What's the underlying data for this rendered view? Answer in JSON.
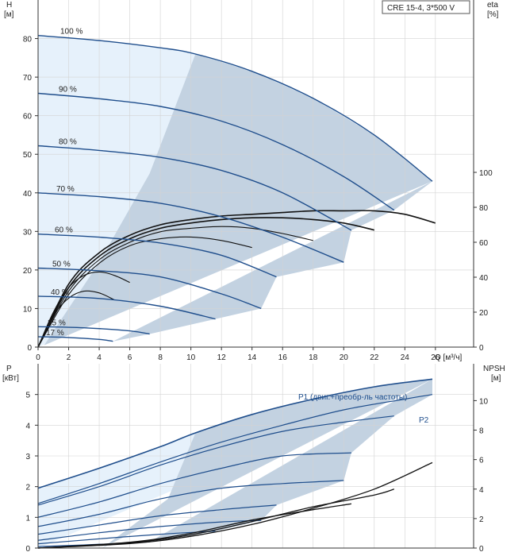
{
  "chart_data": [
    {
      "type": "line",
      "title": "",
      "product_label": "CRE 15-4, 3*500 V",
      "xlabel": "Q [м³/ч]",
      "ylabel_left": "H\n[м]",
      "ylabel_left_top": "H",
      "ylabel_left_unit": "[м]",
      "ylabel_right_top": "eta",
      "ylabel_right_unit": "[%]",
      "xlim": [
        0,
        28.5
      ],
      "ylim_left": [
        0,
        90
      ],
      "ylim_right": [
        0,
        100
      ],
      "x_ticks": [
        "0",
        "2",
        "4",
        "6",
        "8",
        "10",
        "12",
        "14",
        "16",
        "18",
        "20",
        "22",
        "24",
        "26"
      ],
      "y_left_ticks": [
        "0",
        "10",
        "20",
        "30",
        "40",
        "50",
        "60",
        "70",
        "80"
      ],
      "y_right_ticks": [
        "0",
        "20",
        "40",
        "60",
        "80",
        "100"
      ],
      "grid": true,
      "head_curves": [
        {
          "name": "100 %",
          "speed": 1.0,
          "points": [
            [
              0,
              80.8
            ],
            [
              4,
              79.5
            ],
            [
              8,
              77.6
            ],
            [
              10.3,
              76.0
            ],
            [
              14,
              71.5
            ],
            [
              18,
              64.5
            ],
            [
              22,
              55.0
            ],
            [
              25.8,
              43.0
            ]
          ]
        },
        {
          "name": "90 %",
          "speed": 0.9,
          "points": [
            [
              0,
              65.8
            ],
            [
              4,
              64.4
            ],
            [
              8,
              62.4
            ],
            [
              12,
              58.6
            ],
            [
              16,
              52.5
            ],
            [
              20,
              44.2
            ],
            [
              23.3,
              35.5
            ]
          ]
        },
        {
          "name": "80 %",
          "speed": 0.8,
          "points": [
            [
              0,
              52.2
            ],
            [
              4,
              51.0
            ],
            [
              8,
              49.2
            ],
            [
              12,
              45.8
            ],
            [
              16,
              40.0
            ],
            [
              20.5,
              30.3
            ]
          ]
        },
        {
          "name": "70 %",
          "speed": 0.7,
          "points": [
            [
              0,
              40.0
            ],
            [
              4,
              39.0
            ],
            [
              8,
              37.3
            ],
            [
              12,
              33.8
            ],
            [
              16,
              28.5
            ],
            [
              20,
              22.0
            ]
          ]
        },
        {
          "name": "60 %",
          "speed": 0.6,
          "points": [
            [
              0,
              29.3
            ],
            [
              4,
              28.5
            ],
            [
              8,
              27.0
            ],
            [
              12,
              23.8
            ],
            [
              15.6,
              18.2
            ]
          ]
        },
        {
          "name": "50 %",
          "speed": 0.5,
          "points": [
            [
              0,
              20.5
            ],
            [
              4,
              19.8
            ],
            [
              8,
              18.2
            ],
            [
              12,
              13.8
            ],
            [
              14.6,
              10.0
            ]
          ]
        },
        {
          "name": "40 %",
          "speed": 0.4,
          "points": [
            [
              0,
              13.2
            ],
            [
              4,
              12.6
            ],
            [
              8,
              10.6
            ],
            [
              11.6,
              7.3
            ]
          ]
        },
        {
          "name": "25 %",
          "speed": 0.25,
          "points": [
            [
              0,
              5.3
            ],
            [
              3,
              5.0
            ],
            [
              6,
              4.2
            ],
            [
              7.3,
              3.4
            ]
          ]
        },
        {
          "name": "17 %",
          "speed": 0.17,
          "points": [
            [
              0,
              2.7
            ],
            [
              2,
              2.5
            ],
            [
              4,
              2.0
            ],
            [
              4.9,
              1.5
            ]
          ]
        }
      ],
      "efficiency_curves_eta_percent": [
        {
          "points": [
            [
              0,
              0
            ],
            [
              2,
              36
            ],
            [
              4,
              54
            ],
            [
              6,
              64
            ],
            [
              8,
              70
            ],
            [
              10,
              73
            ],
            [
              12,
              75
            ],
            [
              14,
              76
            ],
            [
              16,
              77
            ],
            [
              18,
              78
            ],
            [
              20,
              78
            ],
            [
              22,
              78
            ],
            [
              24,
              76
            ],
            [
              26,
              71
            ]
          ]
        },
        {
          "points": [
            [
              0,
              0
            ],
            [
              2,
              34
            ],
            [
              4,
              52
            ],
            [
              6,
              62
            ],
            [
              8,
              68
            ],
            [
              10,
              71
            ],
            [
              12,
              73
            ],
            [
              14,
              74
            ],
            [
              16,
              74
            ],
            [
              18,
              73
            ],
            [
              20,
              71
            ],
            [
              22,
              67
            ]
          ]
        },
        {
          "points": [
            [
              0,
              0
            ],
            [
              2,
              32
            ],
            [
              4,
              50
            ],
            [
              6,
              60
            ],
            [
              8,
              66
            ],
            [
              10,
              68
            ],
            [
              12,
              69
            ],
            [
              14,
              68
            ],
            [
              16,
              65
            ],
            [
              18,
              61
            ]
          ]
        },
        {
          "points": [
            [
              0,
              0
            ],
            [
              2,
              30
            ],
            [
              4,
              48
            ],
            [
              6,
              58
            ],
            [
              8,
              62
            ],
            [
              10,
              63
            ],
            [
              12,
              61
            ],
            [
              14,
              57
            ]
          ]
        },
        {
          "points": [
            [
              0,
              0
            ],
            [
              1,
              20
            ],
            [
              2,
              34
            ],
            [
              3,
              41
            ],
            [
              4,
              43
            ],
            [
              5,
              41
            ],
            [
              6,
              37
            ]
          ]
        },
        {
          "points": [
            [
              0,
              0
            ],
            [
              1,
              18
            ],
            [
              2,
              28
            ],
            [
              3,
              32
            ],
            [
              4,
              31
            ],
            [
              5,
              27
            ]
          ]
        }
      ],
      "working_area_shaded": true
    },
    {
      "type": "line",
      "ylabel_left_top": "P",
      "ylabel_left_unit": "[кВт]",
      "ylabel_right_top": "NPSH",
      "ylabel_right_unit": "[м]",
      "xlim": [
        0,
        28.5
      ],
      "ylim_left": [
        0,
        6
      ],
      "ylim_right": [
        0,
        12.5
      ],
      "y_left_ticks": [
        "0",
        "1",
        "2",
        "3",
        "4",
        "5"
      ],
      "y_right_ticks": [
        "0",
        "2",
        "4",
        "6",
        "8",
        "10"
      ],
      "grid": true,
      "series_labels": {
        "p1": "P1 (двиг.+преобр-ль частоты)",
        "p2": "P2"
      },
      "power_curves": [
        {
          "name": "P1 (двиг.+преобр-ль частоты)",
          "points": [
            [
              0,
              1.95
            ],
            [
              4,
              2.6
            ],
            [
              8,
              3.3
            ],
            [
              10.3,
              3.75
            ],
            [
              14,
              4.35
            ],
            [
              18,
              4.85
            ],
            [
              22,
              5.25
            ],
            [
              25.8,
              5.5
            ]
          ]
        },
        {
          "name": "P2",
          "points": [
            [
              0,
              1.45
            ],
            [
              4,
              2.1
            ],
            [
              8,
              2.8
            ],
            [
              12,
              3.45
            ],
            [
              16,
              4.0
            ],
            [
              20,
              4.5
            ],
            [
              24,
              4.85
            ],
            [
              25.8,
              5.0
            ]
          ]
        },
        {
          "points": [
            [
              0,
              1.4
            ],
            [
              4,
              2.0
            ],
            [
              8,
              2.7
            ],
            [
              12,
              3.3
            ],
            [
              16,
              3.8
            ],
            [
              20,
              4.1
            ],
            [
              23.3,
              4.3
            ]
          ]
        },
        {
          "points": [
            [
              0,
              1.0
            ],
            [
              4,
              1.5
            ],
            [
              8,
              2.1
            ],
            [
              12,
              2.6
            ],
            [
              16,
              3.0
            ],
            [
              20.5,
              3.1
            ]
          ]
        },
        {
          "points": [
            [
              0,
              0.7
            ],
            [
              4,
              1.1
            ],
            [
              8,
              1.6
            ],
            [
              12,
              1.95
            ],
            [
              16,
              2.1
            ],
            [
              20,
              2.2
            ]
          ]
        },
        {
          "points": [
            [
              0,
              0.45
            ],
            [
              4,
              0.75
            ],
            [
              8,
              1.05
            ],
            [
              12,
              1.25
            ],
            [
              15.6,
              1.4
            ]
          ]
        },
        {
          "points": [
            [
              0,
              0.25
            ],
            [
              4,
              0.5
            ],
            [
              8,
              0.7
            ],
            [
              12,
              0.85
            ],
            [
              14.6,
              0.9
            ]
          ]
        },
        {
          "points": [
            [
              0,
              0.14
            ],
            [
              4,
              0.3
            ],
            [
              8,
              0.45
            ],
            [
              11.6,
              0.55
            ]
          ]
        },
        {
          "points": [
            [
              0,
              0.05
            ],
            [
              3,
              0.1
            ],
            [
              6,
              0.17
            ],
            [
              7.3,
              0.2
            ]
          ]
        }
      ],
      "npsh_curves_m": [
        {
          "points": [
            [
              0,
              0.0
            ],
            [
              6,
              0.3
            ],
            [
              10,
              0.8
            ],
            [
              14,
              1.6
            ],
            [
              18,
              2.7
            ],
            [
              22,
              4.0
            ],
            [
              25.8,
              5.8
            ]
          ]
        },
        {
          "points": [
            [
              0,
              0.0
            ],
            [
              6,
              0.35
            ],
            [
              10,
              0.9
            ],
            [
              14,
              1.8
            ],
            [
              18,
              2.8
            ],
            [
              22,
              3.6
            ],
            [
              23.3,
              4.0
            ]
          ]
        },
        {
          "points": [
            [
              0,
              0.0
            ],
            [
              6,
              0.4
            ],
            [
              10,
              1.0
            ],
            [
              14,
              1.9
            ],
            [
              18,
              2.6
            ],
            [
              20.5,
              3.0
            ]
          ]
        }
      ]
    }
  ],
  "colors": {
    "curve_blue": "#1f4e8c",
    "light_area": "#e6f1fb",
    "dark_area": "#c3d2e1",
    "grid": "#d3d3d3",
    "black_curve": "#111111"
  }
}
